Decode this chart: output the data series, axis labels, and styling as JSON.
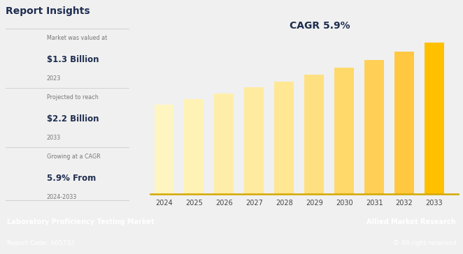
{
  "years": [
    2024,
    2025,
    2026,
    2027,
    2028,
    2029,
    2030,
    2031,
    2032,
    2033
  ],
  "values": [
    1.3,
    1.38,
    1.46,
    1.55,
    1.64,
    1.74,
    1.84,
    1.95,
    2.07,
    2.2
  ],
  "bar_colors": [
    "#FFF5C0",
    "#FFF2B5",
    "#FFEEAA",
    "#FFEB9F",
    "#FFE794",
    "#FFE080",
    "#FFD96A",
    "#FFD055",
    "#FFC840",
    "#FFC000"
  ],
  "cagr_text": "CAGR 5.9%",
  "title": "Report Insights",
  "insight1_label": "Market was valued at",
  "insight1_value": "$1.3 Billion",
  "insight1_year": "2023",
  "insight2_label": "Projected to reach",
  "insight2_value": "$2.2 Billion",
  "insight2_year": "2033",
  "insight3_label": "Growing at a CAGR",
  "insight3_value": "5.9% From",
  "insight3_year": "2024-2033",
  "footer_left1": "Laboratory Proficiency Testing Market",
  "footer_left2": "Report Code: A65732",
  "footer_right1": "Allied Market Research",
  "footer_right2": "© All right reserved",
  "bg_color": "#f0f0f0",
  "footer_bg": "#1e3050",
  "title_color": "#1e2d4f",
  "insight_value_color": "#1e2d4f",
  "insight_label_color": "#777777",
  "cagr_color": "#1e2d4f",
  "divider_color": "#cccccc",
  "axis_color": "#d4a800",
  "ylim_max": 2.6,
  "figwidth": 6.62,
  "figheight": 3.64,
  "dpi": 100
}
